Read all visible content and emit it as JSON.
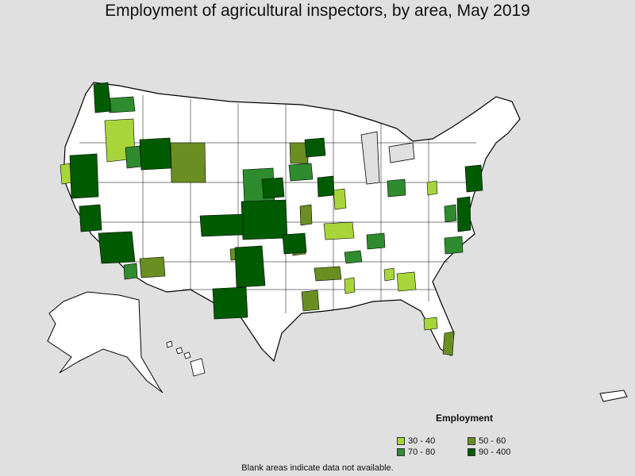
{
  "title": "Employment of agricultural inspectors, by area, May 2019",
  "legend": {
    "title": "Employment",
    "items": [
      {
        "label": "30 - 40",
        "color": "#a8d63a"
      },
      {
        "label": "50 - 60",
        "color": "#6b8e23"
      },
      {
        "label": "70 - 80",
        "color": "#2e8b2e"
      },
      {
        "label": "90 - 400",
        "color": "#005a00"
      }
    ]
  },
  "footnote": "Blank areas indicate data not available.",
  "colors": {
    "background": "#e0e0e0",
    "land": "#ffffff",
    "border": "#000000"
  }
}
